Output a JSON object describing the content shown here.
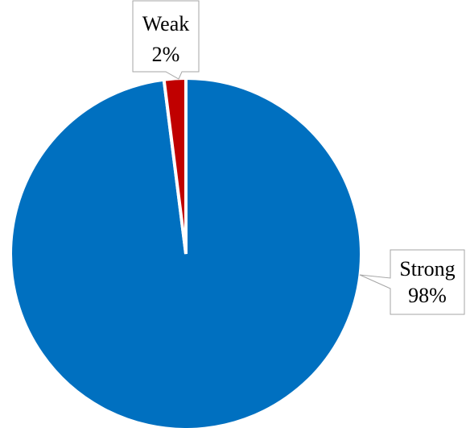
{
  "chart_data": {
    "type": "pie",
    "start_angle_deg": 0,
    "direction": "clockwise",
    "slices": [
      {
        "label": "Strong",
        "value": 98,
        "percent_label": "98%",
        "color": "#0070C0"
      },
      {
        "label": "Weak",
        "value": 2,
        "percent_label": "2%",
        "color": "#C00000"
      }
    ],
    "legend": "none",
    "data_labels": "callout"
  }
}
